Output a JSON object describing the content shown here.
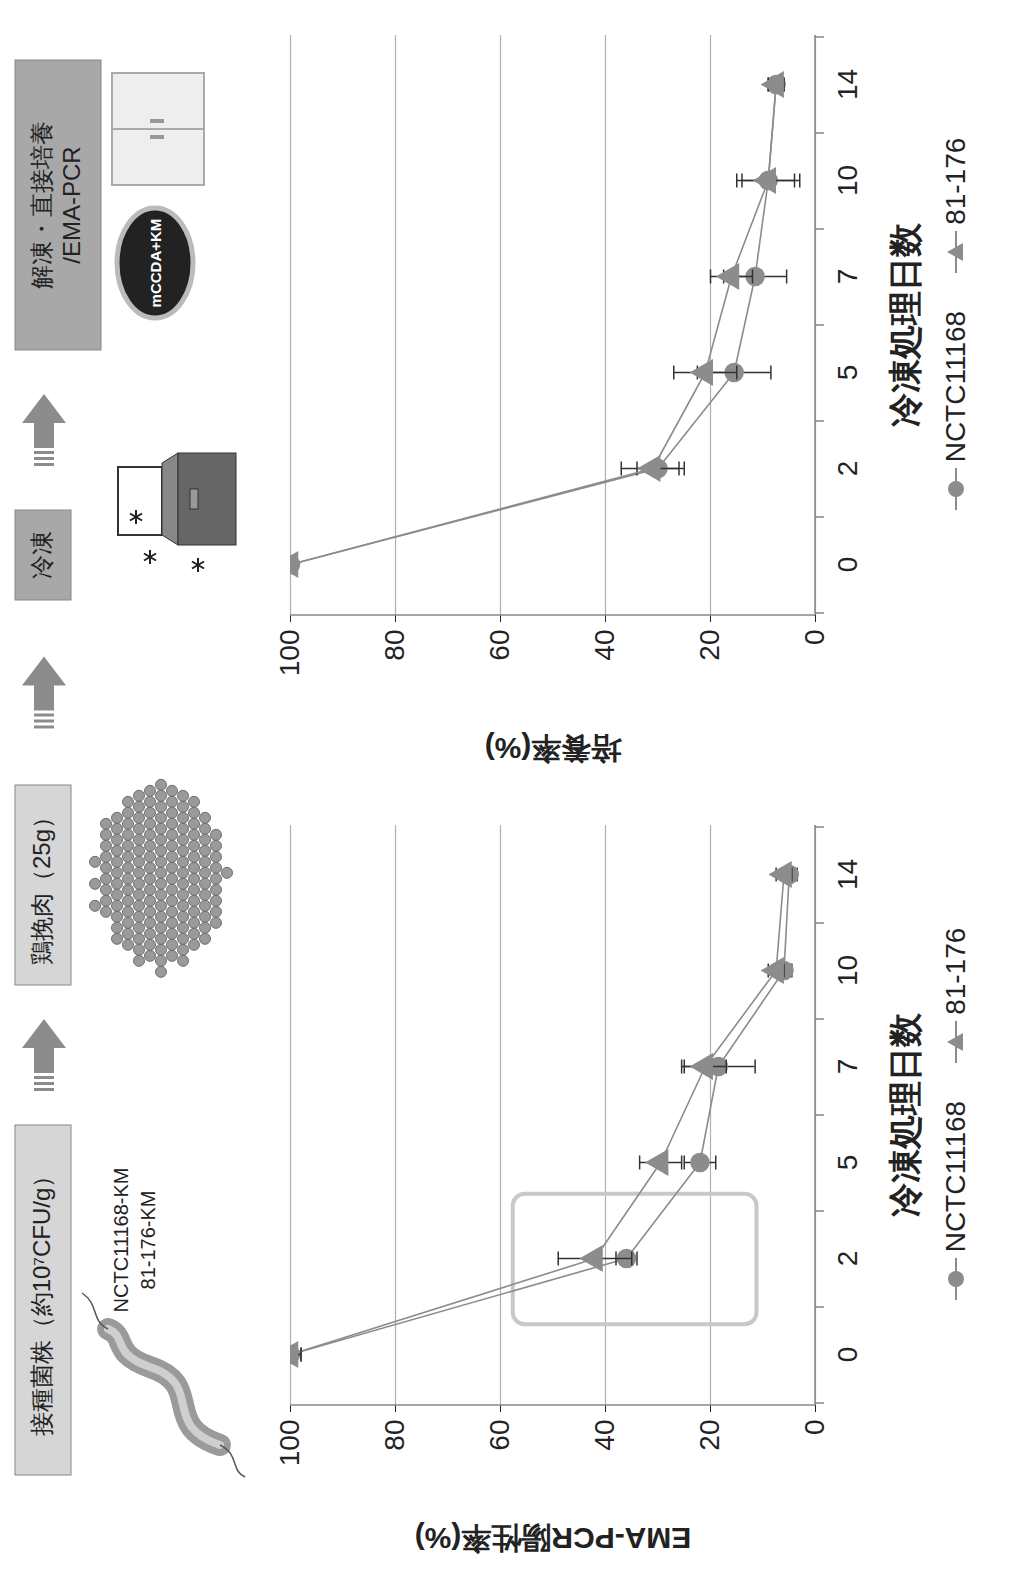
{
  "diagram": {
    "steps": [
      [
        "接種菌株（約10⁷CFU/g）"
      ],
      [
        "鶏挽肉（25g）"
      ],
      [
        "冷凍"
      ],
      [
        "解凍・直接培養",
        "/EMA-PCR"
      ]
    ],
    "strains": [
      "NCTC11168-KM",
      "81-176-KM"
    ],
    "plate_label": "mCCDA+KM"
  },
  "chart_data": [
    {
      "type": "line",
      "x_label": "冷凍処理日数",
      "y_label": "EMA-PCR陽性率(%)",
      "categories": [
        "0",
        "2",
        "5",
        "7",
        "10",
        "14"
      ],
      "series": [
        {
          "name": "NCTC11168",
          "color": "#8c8c8c",
          "marker": "circle",
          "values": [
            100,
            36,
            22,
            18.5,
            6,
            5
          ],
          "errors": [
            2,
            2,
            3,
            7,
            1.5,
            1.5
          ]
        },
        {
          "name": "81-176",
          "color": "#8c8c8c",
          "marker": "triangle",
          "values": [
            100,
            42,
            29.5,
            21,
            7.5,
            6
          ],
          "errors": [
            2,
            7,
            4,
            4,
            1.5,
            1.5
          ]
        }
      ],
      "ylim": [
        0,
        100
      ],
      "yticks": [
        0,
        20,
        40,
        60,
        80,
        100
      ],
      "grid": true,
      "legend": "bottom"
    },
    {
      "type": "line",
      "x_label": "冷凍処理日数",
      "y_label": "培養率(%)",
      "categories": [
        "0",
        "2",
        "5",
        "7",
        "10",
        "14"
      ],
      "series": [
        {
          "name": "NCTC11168",
          "color": "#8c8c8c",
          "marker": "circle",
          "values": [
            100,
            30,
            15.5,
            11.5,
            9,
            7.5
          ],
          "errors": [
            1,
            4,
            7,
            6,
            6,
            1.5
          ]
        },
        {
          "name": "81-176",
          "color": "#8c8c8c",
          "marker": "triangle",
          "values": [
            100,
            31,
            21,
            16,
            9,
            7.5
          ],
          "errors": [
            1,
            6,
            6,
            4,
            5,
            1.5
          ]
        }
      ],
      "ylim": [
        0,
        100
      ],
      "yticks": [
        0,
        20,
        40,
        60,
        80,
        100
      ],
      "grid": true,
      "legend": "bottom"
    }
  ]
}
